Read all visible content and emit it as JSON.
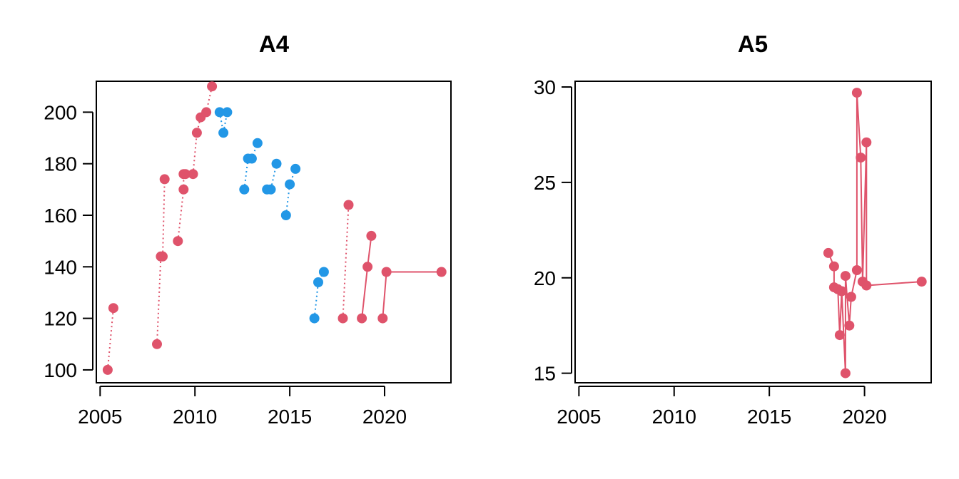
{
  "chart_data": [
    {
      "type": "line",
      "title": "A4",
      "xlabel": "",
      "ylabel": "",
      "x_ticks": [
        2005,
        2010,
        2015,
        2020
      ],
      "y_ticks": [
        100,
        120,
        140,
        160,
        180,
        200
      ],
      "xlim": [
        2004.8,
        2023.5
      ],
      "ylim": [
        95,
        212
      ],
      "colors": {
        "red": "#DF536B",
        "blue": "#2297E6"
      },
      "segments": [
        {
          "color": "red",
          "style": "dotted",
          "points": [
            [
              2005.4,
              100
            ],
            [
              2005.7,
              124
            ]
          ]
        },
        {
          "color": "red",
          "style": "dotted",
          "points": [
            [
              2008.0,
              110
            ],
            [
              2008.2,
              144
            ],
            [
              2008.3,
              144
            ],
            [
              2008.4,
              174
            ]
          ]
        },
        {
          "color": "red",
          "style": "dotted",
          "points": [
            [
              2009.1,
              150
            ],
            [
              2009.4,
              170
            ],
            [
              2009.4,
              176
            ],
            [
              2009.5,
              176
            ]
          ]
        },
        {
          "color": "red",
          "style": "dotted",
          "points": [
            [
              2009.9,
              176
            ],
            [
              2010.1,
              192
            ],
            [
              2010.3,
              198
            ],
            [
              2010.6,
              200
            ],
            [
              2010.9,
              210
            ]
          ]
        },
        {
          "color": "blue",
          "style": "dotted",
          "points": [
            [
              2011.3,
              200
            ],
            [
              2011.5,
              192
            ],
            [
              2011.7,
              200
            ]
          ]
        },
        {
          "color": "blue",
          "style": "dotted",
          "points": [
            [
              2012.6,
              170
            ],
            [
              2012.8,
              182
            ],
            [
              2013.0,
              182
            ],
            [
              2013.3,
              188
            ]
          ]
        },
        {
          "color": "blue",
          "style": "dotted",
          "points": [
            [
              2013.8,
              170
            ],
            [
              2014.0,
              170
            ],
            [
              2014.3,
              180
            ]
          ]
        },
        {
          "color": "blue",
          "style": "dotted",
          "points": [
            [
              2014.8,
              160
            ],
            [
              2015.0,
              172
            ],
            [
              2015.3,
              178
            ]
          ]
        },
        {
          "color": "blue",
          "style": "dotted",
          "points": [
            [
              2016.3,
              120
            ],
            [
              2016.5,
              134
            ],
            [
              2016.8,
              138
            ]
          ]
        },
        {
          "color": "red",
          "style": "dotted",
          "points": [
            [
              2017.8,
              120
            ],
            [
              2018.1,
              164
            ]
          ]
        },
        {
          "color": "red",
          "style": "solid",
          "points": [
            [
              2018.8,
              120
            ],
            [
              2019.1,
              140
            ],
            [
              2019.3,
              152
            ]
          ]
        },
        {
          "color": "red",
          "style": "solid",
          "points": [
            [
              2019.9,
              120
            ],
            [
              2020.1,
              138
            ],
            [
              2023.0,
              138
            ]
          ]
        }
      ]
    },
    {
      "type": "line",
      "title": "A5",
      "xlabel": "",
      "ylabel": "",
      "x_ticks": [
        2005,
        2010,
        2015,
        2020
      ],
      "y_ticks": [
        15,
        20,
        25,
        30
      ],
      "xlim": [
        2004.8,
        2023.5
      ],
      "ylim": [
        14.5,
        30.3
      ],
      "colors": {
        "red": "#DF536B"
      },
      "segments": [
        {
          "color": "red",
          "style": "solid",
          "points": [
            [
              2018.1,
              21.3
            ],
            [
              2018.4,
              20.6
            ],
            [
              2018.4,
              19.5
            ],
            [
              2018.6,
              19.4
            ],
            [
              2018.7,
              17.0
            ],
            [
              2018.8,
              19.3
            ],
            [
              2019.0,
              15.0
            ],
            [
              2019.0,
              20.1
            ],
            [
              2019.2,
              17.5
            ],
            [
              2019.3,
              19.0
            ],
            [
              2019.6,
              20.4
            ],
            [
              2019.6,
              29.7
            ],
            [
              2019.8,
              26.3
            ],
            [
              2019.9,
              19.8
            ],
            [
              2020.1,
              27.1
            ],
            [
              2020.1,
              19.6
            ],
            [
              2023.0,
              19.8
            ]
          ]
        }
      ]
    }
  ]
}
